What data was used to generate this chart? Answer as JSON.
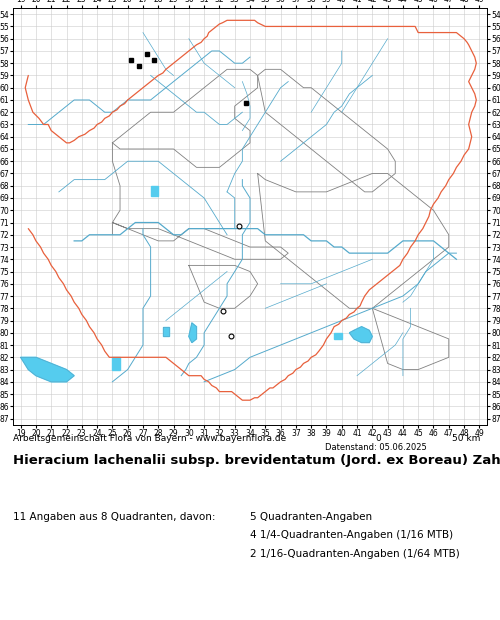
{
  "fig_width": 5.0,
  "fig_height": 6.2,
  "dpi": 100,
  "bg_color": "#ffffff",
  "map_bg_color": "#ffffff",
  "grid_color": "#cccccc",
  "x_ticks": [
    19,
    20,
    21,
    22,
    23,
    24,
    25,
    26,
    27,
    28,
    29,
    30,
    31,
    32,
    33,
    34,
    35,
    36,
    37,
    38,
    39,
    40,
    41,
    42,
    43,
    44,
    45,
    46,
    47,
    48,
    49
  ],
  "y_ticks": [
    54,
    55,
    56,
    57,
    58,
    59,
    60,
    61,
    62,
    63,
    64,
    65,
    66,
    67,
    68,
    69,
    70,
    71,
    72,
    73,
    74,
    75,
    76,
    77,
    78,
    79,
    80,
    81,
    82,
    83,
    84,
    85,
    86,
    87
  ],
  "x_min": 18.5,
  "x_max": 49.5,
  "y_min": 53.5,
  "y_max": 87.5,
  "tick_fontsize": 5.5,
  "outer_border_color": "#e8603c",
  "inner_border_color": "#808080",
  "river_color": "#55aacc",
  "lake_fill_color": "#55ccee",
  "filled_squares": [
    [
      26.25,
      57.75
    ],
    [
      27.25,
      57.25
    ],
    [
      26.75,
      58.25
    ],
    [
      27.75,
      57.75
    ],
    [
      33.75,
      61.25
    ]
  ],
  "open_circles": [
    [
      33.25,
      71.25
    ],
    [
      32.25,
      78.25
    ],
    [
      32.75,
      80.25
    ]
  ],
  "marker_size_square": 3.5,
  "marker_size_circle": 3.5,
  "credit_text": "Arbeitsgemeinschaft Flora von Bayern - www.bayernflora.de",
  "scale_label_0": "0",
  "scale_label_50": "50 km",
  "date_text": "Datenstand: 05.06.2025",
  "title_text": "Hieracium lachenalii subsp. brevidentatum (Jord. ex Boreau) Zahn",
  "stats_left": "11 Angaben aus 8 Quadranten, davon:",
  "stats_right_1": "5 Quadranten-Angaben",
  "stats_right_2": "4 1/4-Quadranten-Angaben (1/16 MTB)",
  "stats_right_3": "2 1/16-Quadranten-Angaben (1/64 MTB)"
}
